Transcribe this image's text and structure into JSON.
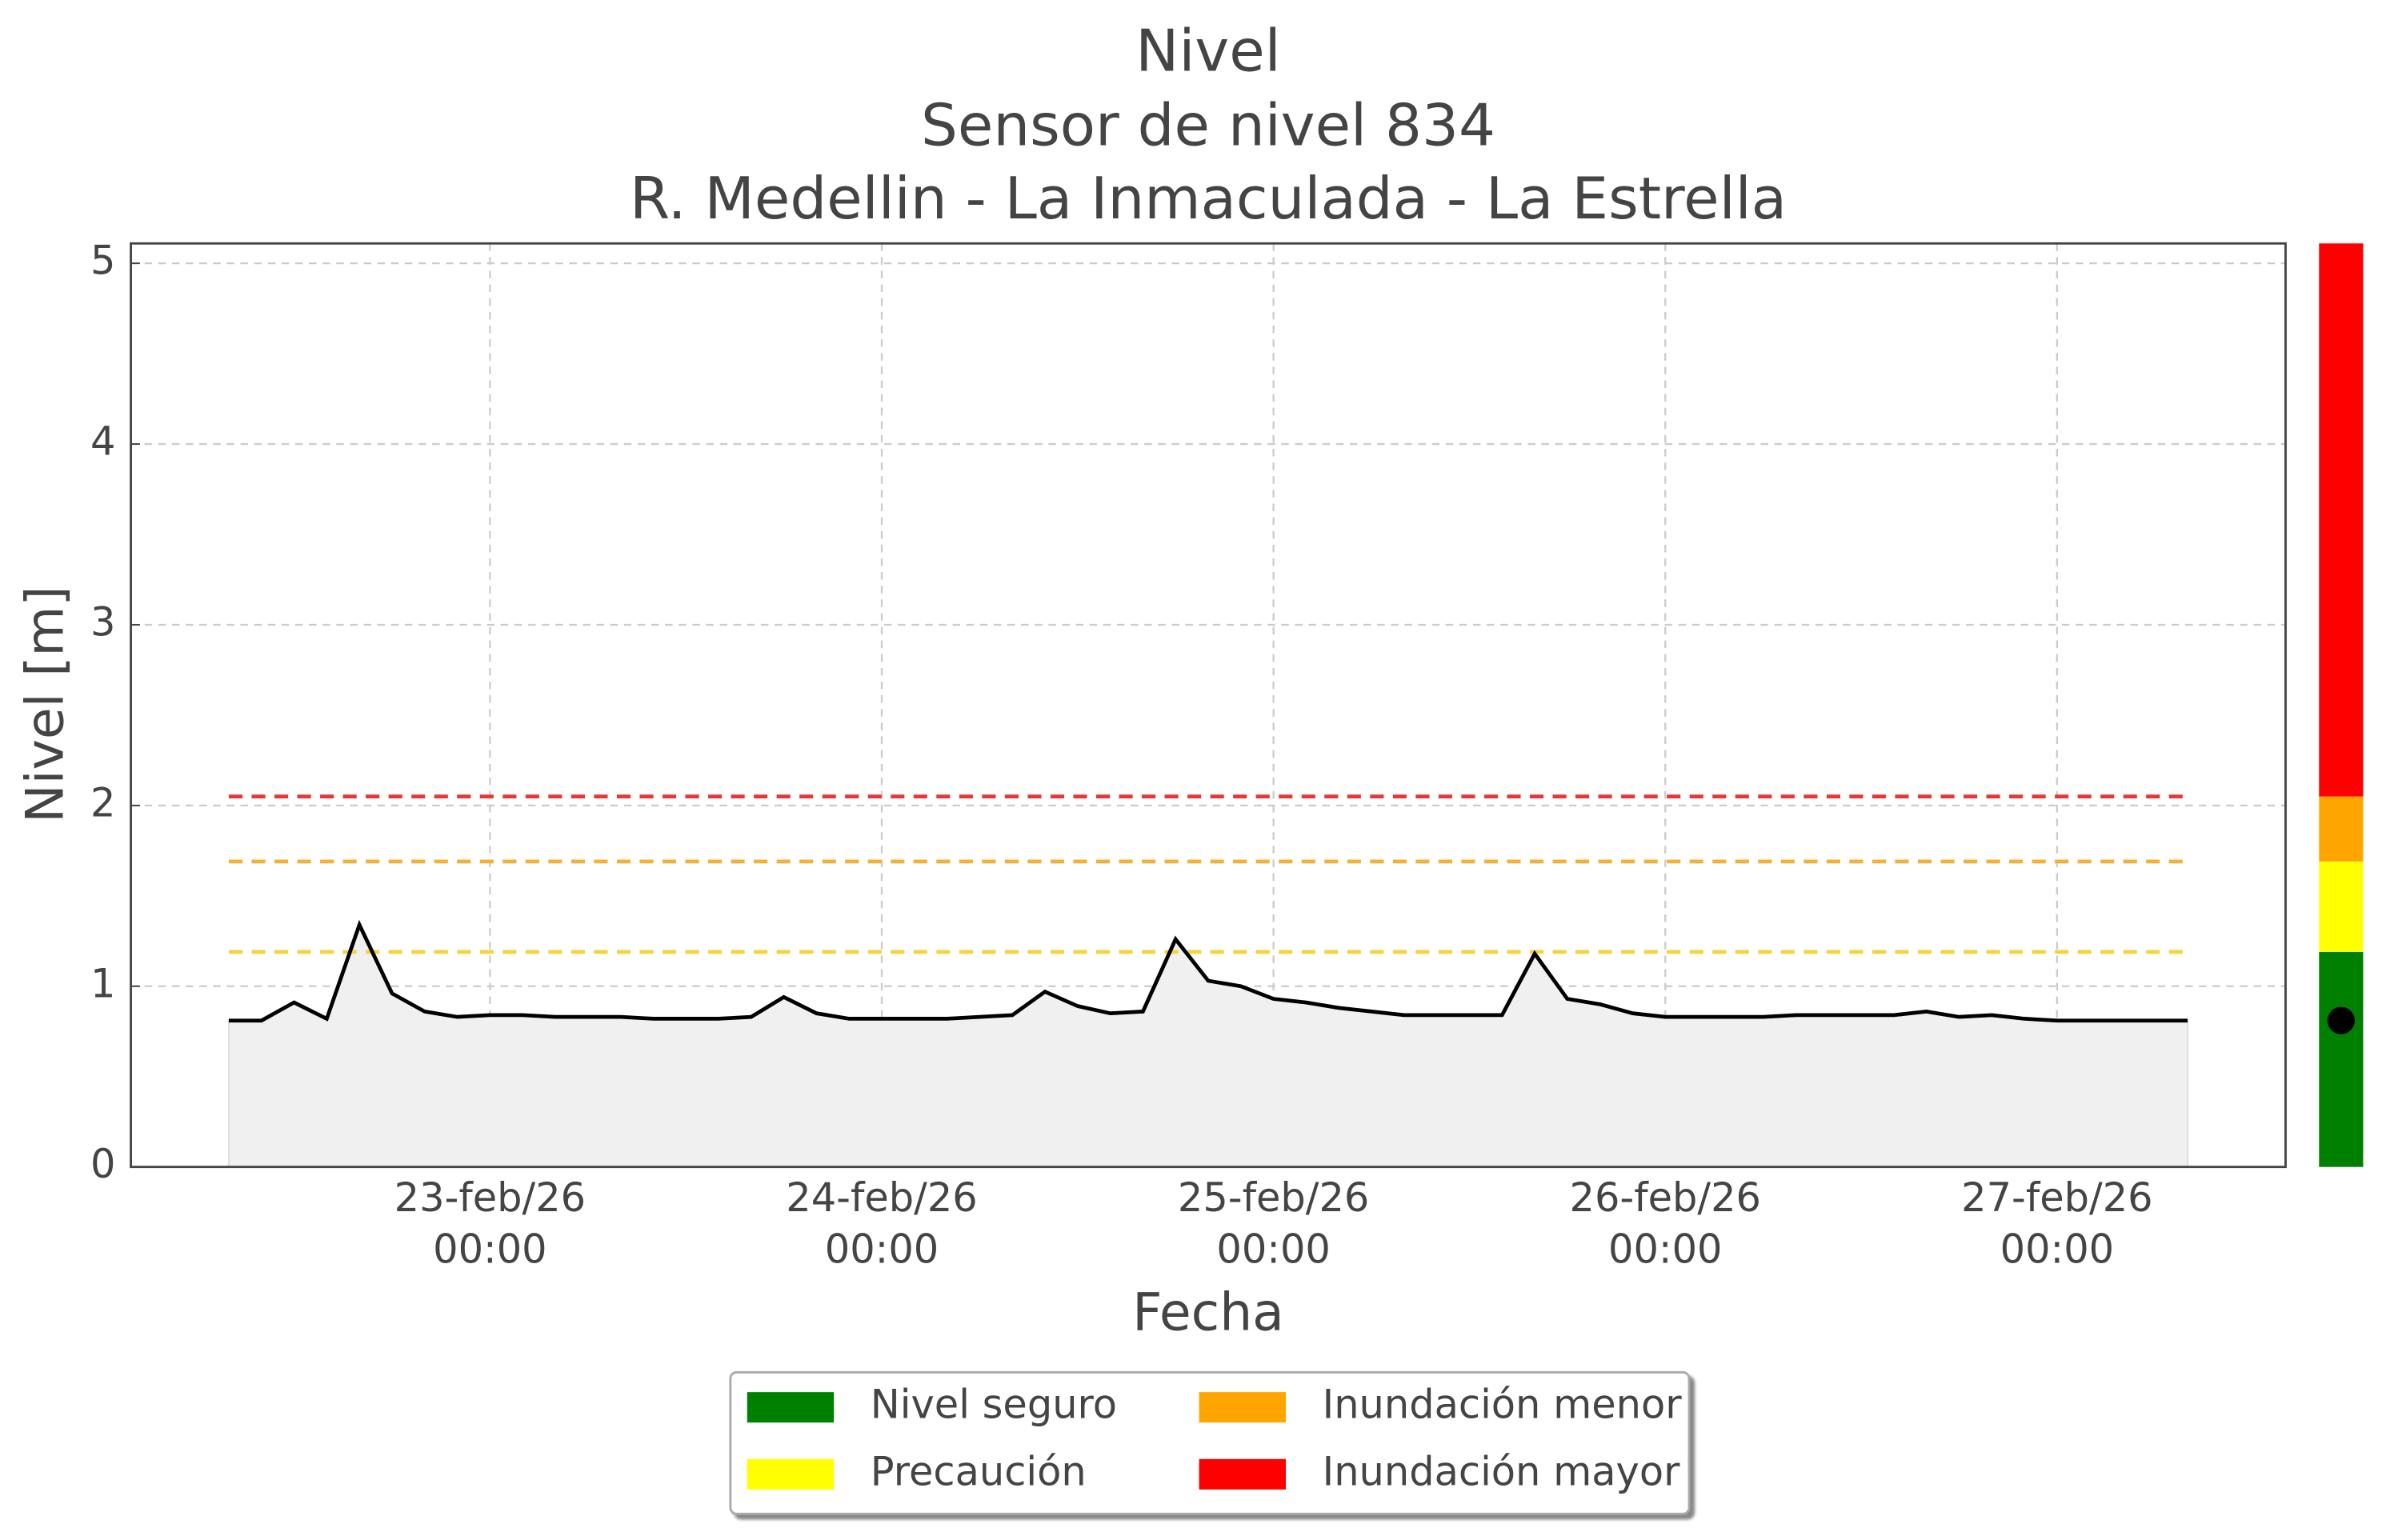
{
  "chart_data": {
    "type": "line",
    "title": "Nivel",
    "subtitle": [
      "Sensor de nivel 834",
      "R. Medellin - La Inmaculada - La Estrella"
    ],
    "xlabel": "Fecha",
    "ylabel": "Nivel [m]",
    "x": [
      "2026-02-22T08:00",
      "2026-02-22T10:00",
      "2026-02-22T12:00",
      "2026-02-22T14:00",
      "2026-02-22T16:00",
      "2026-02-22T18:00",
      "2026-02-22T20:00",
      "2026-02-22T22:00",
      "2026-02-23T00:00",
      "2026-02-23T02:00",
      "2026-02-23T04:00",
      "2026-02-23T06:00",
      "2026-02-23T08:00",
      "2026-02-23T10:00",
      "2026-02-23T12:00",
      "2026-02-23T14:00",
      "2026-02-23T16:00",
      "2026-02-23T18:00",
      "2026-02-23T20:00",
      "2026-02-23T22:00",
      "2026-02-24T00:00",
      "2026-02-24T02:00",
      "2026-02-24T04:00",
      "2026-02-24T06:00",
      "2026-02-24T08:00",
      "2026-02-24T10:00",
      "2026-02-24T12:00",
      "2026-02-24T14:00",
      "2026-02-24T16:00",
      "2026-02-24T18:00",
      "2026-02-24T20:00",
      "2026-02-24T22:00",
      "2026-02-25T00:00",
      "2026-02-25T02:00",
      "2026-02-25T04:00",
      "2026-02-25T06:00",
      "2026-02-25T08:00",
      "2026-02-25T10:00",
      "2026-02-25T12:00",
      "2026-02-25T14:00",
      "2026-02-25T16:00",
      "2026-02-25T18:00",
      "2026-02-25T20:00",
      "2026-02-25T22:00",
      "2026-02-26T00:00",
      "2026-02-26T02:00",
      "2026-02-26T04:00",
      "2026-02-26T06:00",
      "2026-02-26T08:00",
      "2026-02-26T10:00",
      "2026-02-26T12:00",
      "2026-02-26T14:00",
      "2026-02-26T16:00",
      "2026-02-26T18:00",
      "2026-02-26T20:00",
      "2026-02-26T22:00",
      "2026-02-27T00:00",
      "2026-02-27T02:00",
      "2026-02-27T04:00",
      "2026-02-27T06:00",
      "2026-02-27T08:00"
    ],
    "series": [
      {
        "color": "#000000",
        "values": [
          0.81,
          0.81,
          0.91,
          0.82,
          1.34,
          0.96,
          0.86,
          0.83,
          0.84,
          0.84,
          0.83,
          0.83,
          0.83,
          0.82,
          0.82,
          0.82,
          0.83,
          0.94,
          0.85,
          0.82,
          0.82,
          0.82,
          0.82,
          0.83,
          0.84,
          0.97,
          0.89,
          0.85,
          0.86,
          1.26,
          1.03,
          1.0,
          0.93,
          0.91,
          0.88,
          0.86,
          0.84,
          0.84,
          0.84,
          0.84,
          1.18,
          0.93,
          0.9,
          0.85,
          0.83,
          0.83,
          0.83,
          0.83,
          0.84,
          0.84,
          0.84,
          0.84,
          0.86,
          0.83,
          0.84,
          0.82,
          0.81,
          0.81,
          0.81,
          0.81,
          0.81
        ]
      }
    ],
    "fill_color": "#f0f0f0",
    "levels": [
      {
        "name": "Nivel seguro",
        "color": "#008000",
        "range": [
          0,
          1.19
        ],
        "line_color": "#f5d43a"
      },
      {
        "name": "Precaución",
        "color": "#ffff00",
        "range": [
          1.19,
          1.69
        ],
        "line_color": "#f5b035"
      },
      {
        "name": "Inundación menor",
        "color": "#ffa500",
        "range": [
          1.69,
          2.05
        ],
        "line_color": "#e83535"
      },
      {
        "name": "Inundación mayor",
        "color": "#ff0000",
        "range": [
          2.05,
          5.11
        ]
      }
    ],
    "xlim": [
      "2026-02-22T02:00",
      "2026-02-27T14:00"
    ],
    "xticks": [
      {
        "value": "2026-02-23T00:00",
        "label": [
          "23-feb/26",
          "00:00"
        ]
      },
      {
        "value": "2026-02-24T00:00",
        "label": [
          "24-feb/26",
          "00:00"
        ]
      },
      {
        "value": "2026-02-25T00:00",
        "label": [
          "25-feb/26",
          "00:00"
        ]
      },
      {
        "value": "2026-02-26T00:00",
        "label": [
          "26-feb/26",
          "00:00"
        ]
      },
      {
        "value": "2026-02-27T00:00",
        "label": [
          "27-feb/26",
          "00:00"
        ]
      }
    ],
    "ylim": [
      0,
      5.11
    ],
    "yticks": [
      0,
      1,
      2,
      3,
      4,
      5
    ],
    "grid": true
  }
}
